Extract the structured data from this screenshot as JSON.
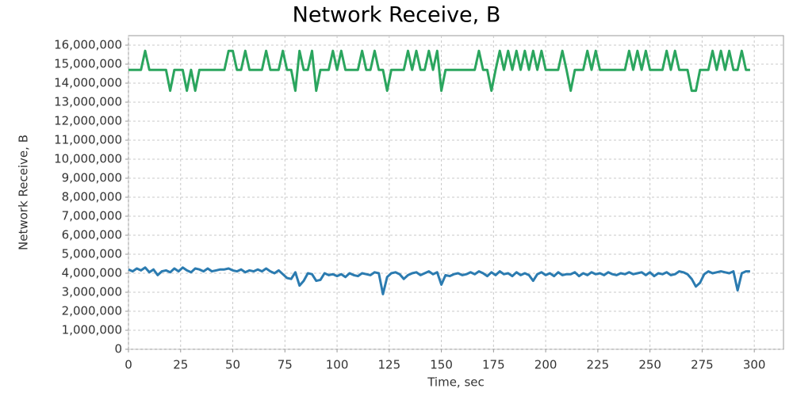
{
  "chart_data": {
    "type": "line",
    "title": "Network Receive, B",
    "x_label": "Time, sec",
    "y_label": "Network Receive, B",
    "x": [
      0,
      2,
      4,
      6,
      8,
      10,
      12,
      14,
      16,
      18,
      20,
      22,
      24,
      26,
      28,
      30,
      32,
      34,
      36,
      38,
      40,
      42,
      44,
      46,
      48,
      50,
      52,
      54,
      56,
      58,
      60,
      62,
      64,
      66,
      68,
      70,
      72,
      74,
      76,
      78,
      80,
      82,
      84,
      86,
      88,
      90,
      92,
      94,
      96,
      98,
      100,
      102,
      104,
      106,
      108,
      110,
      112,
      114,
      116,
      118,
      120,
      122,
      124,
      126,
      128,
      130,
      132,
      134,
      136,
      138,
      140,
      142,
      144,
      146,
      148,
      150,
      152,
      154,
      156,
      158,
      160,
      162,
      164,
      166,
      168,
      170,
      172,
      174,
      176,
      178,
      180,
      182,
      184,
      186,
      188,
      190,
      192,
      194,
      196,
      198,
      200,
      202,
      204,
      206,
      208,
      210,
      212,
      214,
      216,
      218,
      220,
      222,
      224,
      226,
      228,
      230,
      232,
      234,
      236,
      238,
      240,
      242,
      244,
      246,
      248,
      250,
      252,
      254,
      256,
      258,
      260,
      262,
      264,
      266,
      268,
      270,
      272,
      274,
      276,
      278,
      280,
      282,
      284,
      286,
      288,
      290,
      292,
      294,
      296,
      298
    ],
    "series": [
      {
        "color": "#2ba55e",
        "values": [
          14700000,
          14700000,
          14700000,
          14700000,
          15700000,
          14700000,
          14700000,
          14700000,
          14700000,
          14700000,
          13600000,
          14700000,
          14700000,
          14700000,
          13600000,
          14700000,
          13600000,
          14700000,
          14700000,
          14700000,
          14700000,
          14700000,
          14700000,
          14700000,
          15700000,
          15700000,
          14700000,
          14700000,
          15700000,
          14700000,
          14700000,
          14700000,
          14700000,
          15700000,
          14700000,
          14700000,
          14700000,
          15700000,
          14700000,
          14700000,
          13600000,
          15700000,
          14700000,
          14700000,
          15700000,
          13600000,
          14700000,
          14700000,
          14700000,
          15700000,
          14700000,
          15700000,
          14700000,
          14700000,
          14700000,
          14700000,
          15700000,
          14700000,
          14700000,
          15700000,
          14700000,
          14700000,
          13600000,
          14700000,
          14700000,
          14700000,
          14700000,
          15700000,
          14700000,
          15700000,
          14700000,
          14700000,
          15700000,
          14700000,
          15700000,
          13600000,
          14700000,
          14700000,
          14700000,
          14700000,
          14700000,
          14700000,
          14700000,
          14700000,
          15700000,
          14700000,
          14700000,
          13600000,
          14700000,
          15700000,
          14700000,
          15700000,
          14700000,
          15700000,
          14700000,
          15700000,
          14700000,
          15700000,
          14700000,
          15700000,
          14700000,
          14700000,
          14700000,
          14700000,
          15700000,
          14700000,
          13600000,
          14700000,
          14700000,
          14700000,
          15700000,
          14700000,
          15700000,
          14700000,
          14700000,
          14700000,
          14700000,
          14700000,
          14700000,
          14700000,
          15700000,
          14700000,
          15700000,
          14700000,
          15700000,
          14700000,
          14700000,
          14700000,
          14700000,
          15700000,
          14700000,
          15700000,
          14700000,
          14700000,
          14700000,
          13600000,
          13600000,
          14700000,
          14700000,
          14700000,
          15700000,
          14700000,
          15700000,
          14700000,
          15700000,
          14700000,
          14700000,
          15700000,
          14700000,
          14700000
        ]
      },
      {
        "color": "#2b7bb0",
        "values": [
          4200000,
          4100000,
          4250000,
          4150000,
          4300000,
          4050000,
          4200000,
          3900000,
          4100000,
          4150000,
          4050000,
          4250000,
          4100000,
          4300000,
          4150000,
          4050000,
          4250000,
          4200000,
          4100000,
          4250000,
          4100000,
          4150000,
          4200000,
          4200000,
          4250000,
          4150000,
          4100000,
          4200000,
          4050000,
          4150000,
          4100000,
          4200000,
          4100000,
          4250000,
          4100000,
          4000000,
          4150000,
          3950000,
          3750000,
          3700000,
          4050000,
          3350000,
          3600000,
          4000000,
          3950000,
          3600000,
          3650000,
          4000000,
          3900000,
          3950000,
          3850000,
          3950000,
          3800000,
          4000000,
          3900000,
          3850000,
          4000000,
          3950000,
          3900000,
          4050000,
          4000000,
          2900000,
          3800000,
          4000000,
          4050000,
          3950000,
          3700000,
          3900000,
          4000000,
          4050000,
          3900000,
          4000000,
          4100000,
          3950000,
          4050000,
          3400000,
          3900000,
          3850000,
          3950000,
          4000000,
          3900000,
          3950000,
          4050000,
          3950000,
          4100000,
          4000000,
          3850000,
          4050000,
          3900000,
          4100000,
          3950000,
          4000000,
          3850000,
          4050000,
          3900000,
          4000000,
          3900000,
          3600000,
          3950000,
          4050000,
          3900000,
          4000000,
          3850000,
          4050000,
          3900000,
          3950000,
          3950000,
          4050000,
          3850000,
          4000000,
          3900000,
          4050000,
          3950000,
          4000000,
          3900000,
          4050000,
          3950000,
          3900000,
          4000000,
          3950000,
          4050000,
          3950000,
          4000000,
          4050000,
          3900000,
          4050000,
          3850000,
          4000000,
          3950000,
          4050000,
          3900000,
          3950000,
          4100000,
          4050000,
          3950000,
          3700000,
          3300000,
          3500000,
          3950000,
          4100000,
          4000000,
          4050000,
          4100000,
          4050000,
          4000000,
          4100000,
          3100000,
          4000000,
          4100000,
          4100000
        ]
      }
    ],
    "xlim": [
      0,
      314
    ],
    "xticks": [
      0,
      25,
      50,
      75,
      100,
      125,
      150,
      175,
      200,
      225,
      250,
      275,
      300
    ],
    "ylim": [
      0,
      16500000
    ],
    "yticks": [
      0,
      {
        "value": 1000000,
        "label": "1,000,000"
      },
      {
        "value": 2000000,
        "label": "2,000,000"
      },
      {
        "value": 3000000,
        "label": "3,000,000"
      },
      {
        "value": 4000000,
        "label": "4,000,000"
      },
      {
        "value": 5000000,
        "label": "5,000,000"
      },
      {
        "value": 6000000,
        "label": "6,000,000"
      },
      {
        "value": 7000000,
        "label": "7,000,000"
      },
      {
        "value": 8000000,
        "label": "8,000,000"
      },
      {
        "value": 9000000,
        "label": "9,000,000"
      },
      {
        "value": 10000000,
        "label": "10,000,000"
      },
      {
        "value": 11000000,
        "label": "11,000,000"
      },
      {
        "value": 12000000,
        "label": "12,000,000"
      },
      {
        "value": 13000000,
        "label": "13,000,000"
      },
      {
        "value": 14000000,
        "label": "14,000,000"
      },
      {
        "value": 15000000,
        "label": "15,000,000"
      },
      {
        "value": 16000000,
        "label": "16,000,000"
      }
    ],
    "grid": true
  }
}
